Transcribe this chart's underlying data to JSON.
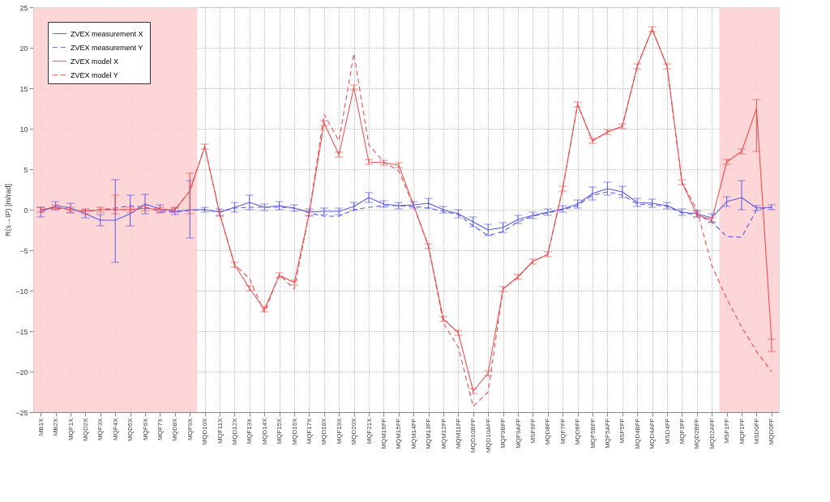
{
  "chart_data": {
    "type": "line",
    "ylabel": "R(s→IP) [m/rad]",
    "categories": [
      "MB1X",
      "MB2X",
      "MQF1X",
      "MQD2X",
      "MQF3X",
      "MQF4X",
      "MQD5X",
      "MQF6X",
      "MQF7X",
      "MQD8X",
      "MQF9X",
      "MQD10X",
      "MQF11X",
      "MQD12X",
      "MQF13X",
      "MQD14X",
      "MQF15X",
      "MQD16X",
      "MQF17X",
      "MQD18X",
      "MQF19X",
      "MQD20X",
      "MQF21X",
      "MQM16FF",
      "MQM15FF",
      "MQM14FF",
      "MQM13FF",
      "MQM12FF",
      "MQM11FF",
      "MQD10BFF",
      "MQD10AFF",
      "MQF9BFF",
      "MQF9AFF",
      "MSF6FF",
      "MQD8FF",
      "MQF7FF",
      "MQD6FF",
      "MQF5BFF",
      "MQF5AFF",
      "MSF5FF",
      "MQD4BFF",
      "MQD4AFF",
      "MSD4FF",
      "MQF3FF",
      "MQD2BFF",
      "MQD2AFF",
      "MSF1FF",
      "MQF1FF",
      "MSD0FF",
      "MQD0FF"
    ],
    "series": [
      {
        "name": "ZVEX  measurement X",
        "color": "#5a5ae6",
        "line_style": "solid",
        "values": [
          -0.3,
          0.5,
          0.2,
          -0.5,
          -1.3,
          -1.3,
          -0.5,
          0.7,
          0.1,
          -0.2,
          0,
          0,
          -0.3,
          0.3,
          0.9,
          0.3,
          0.5,
          0.2,
          -0.3,
          -0.2,
          -0.2,
          0.4,
          1.5,
          0.7,
          0.5,
          0.6,
          0.8,
          0,
          -0.5,
          -1.5,
          -2.5,
          -2.2,
          -1.2,
          -0.7,
          -0.3,
          0.1,
          0.7,
          2.0,
          2.6,
          2.2,
          0.9,
          0.8,
          0.5,
          -0.3,
          -0.5,
          -1.0,
          1.0,
          1.5,
          0.2,
          0.3
        ],
        "errors": [
          0.6,
          0.5,
          0.6,
          0.5,
          0.7,
          [
            -6.5,
            3.7
          ],
          [
            -2,
            1.8
          ],
          1.2,
          0.5,
          0.4,
          [
            -3.5,
            3.6
          ],
          0.3,
          0.4,
          0.6,
          0.9,
          0.4,
          0.5,
          0.4,
          0.4,
          0.4,
          0.4,
          0.5,
          0.6,
          0.4,
          0.4,
          0.4,
          0.6,
          0.4,
          0.5,
          0.6,
          0.7,
          0.6,
          0.5,
          0.4,
          0.4,
          0.4,
          0.5,
          0.8,
          0.8,
          0.7,
          0.5,
          0.5,
          0.4,
          0.4,
          0.4,
          0.5,
          0.6,
          [
            0,
            3.6
          ],
          0.3,
          0.3
        ]
      },
      {
        "name": "ZVEX  measurement Y",
        "color": "#5a5ae6",
        "line_style": "dashed",
        "values": [
          0,
          0.2,
          0,
          -0.2,
          0,
          0.2,
          0.5,
          0.3,
          -0.2,
          -0.3,
          -0.1,
          0,
          -0.3,
          0.2,
          0.3,
          0.3,
          0.3,
          0.2,
          -0.4,
          -0.8,
          -0.8,
          0,
          0.3,
          0.5,
          0.5,
          0.4,
          0.2,
          -0.2,
          -0.6,
          -2.0,
          -3.2,
          -2.7,
          -1.5,
          -0.8,
          -0.4,
          0,
          0.5,
          1.8,
          2.2,
          1.8,
          0.7,
          0.6,
          0.4,
          -0.4,
          -0.6,
          -1.5,
          -3.3,
          -3.4,
          0,
          0.3
        ]
      },
      {
        "name": "ZVEX  model X",
        "color": "#ee4f4f",
        "line_style": "solid",
        "values": [
          0,
          0.3,
          0,
          -0.2,
          0,
          0,
          0,
          0.2,
          0,
          0,
          2.3,
          7.8,
          -0.5,
          -6.8,
          -9.7,
          -12.3,
          -8.1,
          -9.0,
          -0.5,
          10.7,
          6.8,
          15.1,
          5.9,
          5.8,
          5.5,
          0.6,
          -4.5,
          -13.5,
          -15.2,
          -22.4,
          -20.2,
          -9.8,
          -8.3,
          -6.4,
          -5.5,
          2.6,
          13.0,
          8.5,
          9.6,
          10.3,
          17.7,
          22.3,
          17.7,
          3.4,
          -0.6,
          -1.3,
          5.9,
          7.2,
          12.5,
          -16.0
        ],
        "errors": [
          0.3,
          0.3,
          0.3,
          0.3,
          0.3,
          [
            -0.5,
            1.8
          ],
          0.3,
          0.3,
          0.3,
          0.3,
          [
            -0.5,
            4.5
          ],
          0.3,
          0.3,
          0.3,
          0.3,
          0.3,
          0.3,
          0.3,
          0.3,
          0.3,
          0.3,
          0.3,
          0.3,
          0.3,
          0.3,
          null,
          0.3,
          0.3,
          0.3,
          0.3,
          0.3,
          0.3,
          0.3,
          0.3,
          0.3,
          0.3,
          0.3,
          0.3,
          0.3,
          0.3,
          0.3,
          0.3,
          0.3,
          0.3,
          0.3,
          0.3,
          0.3,
          0.3,
          [
            7.2,
            13.6
          ],
          [
            -17.5,
            -16
          ]
        ]
      },
      {
        "name": "ZVEX  model Y",
        "color": "#ee4f4f",
        "line_style": "dashed",
        "values": [
          0,
          0.3,
          0,
          -0.2,
          0,
          0,
          0,
          0.2,
          0,
          0,
          2.3,
          7.8,
          -0.5,
          -6.8,
          -8.5,
          -12.7,
          -8.0,
          -9.8,
          -0.5,
          11.8,
          8.5,
          19.3,
          8.0,
          5.9,
          4.8,
          0.5,
          -4.5,
          -14.0,
          -17.0,
          -24.3,
          -22.5,
          -9.8,
          -8.3,
          -6.4,
          -5.5,
          2.6,
          13.0,
          8.5,
          9.6,
          10.3,
          17.7,
          22.3,
          17.7,
          3.4,
          0,
          -6.9,
          -11.0,
          -14.5,
          -17.5,
          -20.0
        ]
      }
    ],
    "ylim": [
      -25,
      25
    ],
    "yticks": [
      -25,
      -20,
      -15,
      -10,
      -5,
      0,
      5,
      10,
      15,
      20,
      25
    ],
    "bands": [
      {
        "axis": "x",
        "from": "MB1X",
        "to": "MQF9X",
        "color": "#fdd0d0"
      },
      {
        "axis": "x",
        "from": "MSF1FF",
        "to": "MQD0FF",
        "color": "#fdd0d0"
      }
    ],
    "grid": true,
    "legend": "top left"
  }
}
